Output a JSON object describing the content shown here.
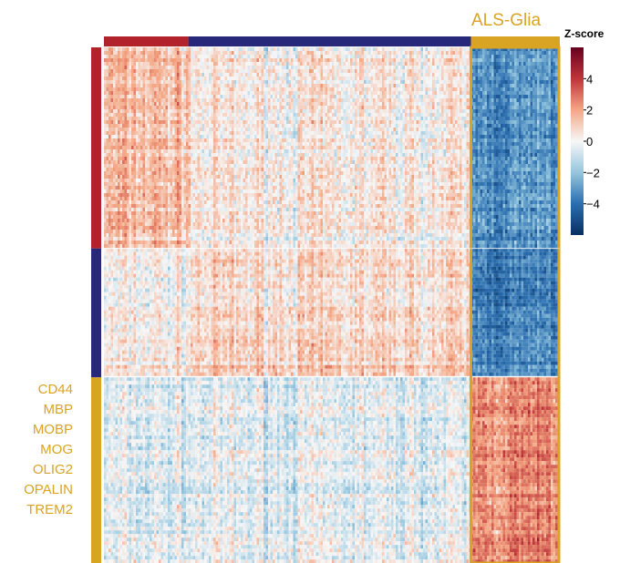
{
  "chart_data": {
    "type": "heatmap",
    "title": "",
    "colorbar": {
      "title": "Z-score",
      "ticks": [
        4,
        2,
        0,
        -2,
        -4
      ],
      "tick_labels": [
        "4",
        "2",
        "0",
        "−2",
        "−4"
      ],
      "range": [
        -6,
        6
      ],
      "colors": {
        "high": "#67001f",
        "mid": "#f7f7f7",
        "low": "#053061"
      }
    },
    "column_groups": [
      {
        "color": "#b2222a",
        "fraction": 0.23
      },
      {
        "color": "#27287a",
        "fraction": 0.77
      }
    ],
    "highlight_group": {
      "label": "ALS-Glia",
      "color": "#d9a323",
      "fraction": 0.195
    },
    "row_groups": [
      {
        "color": "#b2222a",
        "fraction": 0.39
      },
      {
        "color": "#27287a",
        "fraction": 0.25
      },
      {
        "color": "#d9a323",
        "fraction": 0.36
      }
    ],
    "cluster_mean_zscore": {
      "rows": [
        "red",
        "blue",
        "gold"
      ],
      "cols": [
        "red",
        "blue",
        "ALS-Glia"
      ],
      "values": [
        [
          1.4,
          0.3,
          -3.2
        ],
        [
          0.2,
          0.8,
          -3.6
        ],
        [
          -0.6,
          -0.5,
          2.4
        ]
      ]
    },
    "gene_labels": [
      "CD44",
      "MBP",
      "MOBP",
      "MOG",
      "OLIG2",
      "OPALIN",
      "TREM2"
    ],
    "gene_label_color": "#d9a323"
  }
}
